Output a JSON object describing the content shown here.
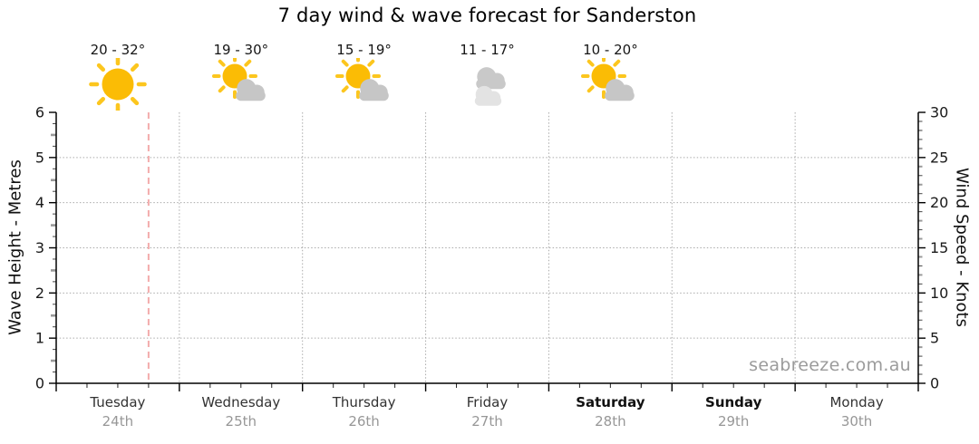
{
  "title": "7 day wind & wave forecast for Sanderston",
  "watermark": "seabreeze.com.au",
  "colors": {
    "sun": "#FBBC05",
    "sun_ray": "#FCC61E",
    "cloud": "#C6C6C6",
    "cloud_dark": "#C9C9C9",
    "cloud_light": "#E3E3E3",
    "grid": "#ABABAB",
    "time_marker": "#F3ACAC",
    "axis": "#000000",
    "tick_minor": "#444444",
    "tick_half": "#999999",
    "day_label": "#323232",
    "date_label": "#979797"
  },
  "left_axis": {
    "label": "Wave Height - Metres",
    "min": 0,
    "max": 6,
    "tick_labels": [
      "0",
      "1",
      "2",
      "3",
      "4",
      "5",
      "6"
    ]
  },
  "right_axis": {
    "label": "Wind Speed - Knots",
    "min": 0,
    "max": 30,
    "tick_labels": [
      "0",
      "5",
      "10",
      "15",
      "20",
      "25",
      "30"
    ]
  },
  "days": [
    {
      "name": "Tuesday",
      "date": "24th",
      "weekend": false,
      "temp": "20 - 32°",
      "icon": "sunny"
    },
    {
      "name": "Wednesday",
      "date": "25th",
      "weekend": false,
      "temp": "19 - 30°",
      "icon": "partly-cloudy"
    },
    {
      "name": "Thursday",
      "date": "26th",
      "weekend": false,
      "temp": "15 - 19°",
      "icon": "partly-cloudy"
    },
    {
      "name": "Friday",
      "date": "27th",
      "weekend": false,
      "temp": "11 - 17°",
      "icon": "cloudy"
    },
    {
      "name": "Saturday",
      "date": "28th",
      "weekend": true,
      "temp": "10 - 20°",
      "icon": "partly-cloudy"
    },
    {
      "name": "Sunday",
      "date": "29th",
      "weekend": true,
      "temp": null,
      "icon": null
    },
    {
      "name": "Monday",
      "date": "30th",
      "weekend": false,
      "temp": null,
      "icon": null
    }
  ],
  "chart_data": {
    "type": "line",
    "title": "7 day wind & wave forecast for Sanderston",
    "x_categories": [
      "Tuesday 24th",
      "Wednesday 25th",
      "Thursday 26th",
      "Friday 27th",
      "Saturday 28th",
      "Sunday 29th",
      "Monday 30th"
    ],
    "series": [],
    "y_left_axis": {
      "label": "Wave Height - Metres",
      "range": [
        0,
        6
      ],
      "major_ticks": [
        0,
        1,
        2,
        3,
        4,
        5,
        6
      ],
      "minor_step": 0.25
    },
    "y_right_axis": {
      "label": "Wind Speed - Knots",
      "range": [
        0,
        30
      ],
      "major_ticks": [
        0,
        5,
        10,
        15,
        20,
        25,
        30
      ],
      "minor_step": 1
    },
    "grid": true,
    "x_minor_ticks_per_day": 4,
    "time_marker": {
      "day": "Tuesday",
      "fraction_of_day": 0.75
    },
    "forecast": [
      {
        "day": "Tuesday",
        "date": "24th",
        "low_c": 20,
        "high_c": 32,
        "condition": "sunny"
      },
      {
        "day": "Wednesday",
        "date": "25th",
        "low_c": 19,
        "high_c": 30,
        "condition": "partly-cloudy"
      },
      {
        "day": "Thursday",
        "date": "26th",
        "low_c": 15,
        "high_c": 19,
        "condition": "partly-cloudy"
      },
      {
        "day": "Friday",
        "date": "27th",
        "low_c": 11,
        "high_c": 17,
        "condition": "cloudy"
      },
      {
        "day": "Saturday",
        "date": "28th",
        "low_c": 10,
        "high_c": 20,
        "condition": "partly-cloudy"
      }
    ]
  }
}
